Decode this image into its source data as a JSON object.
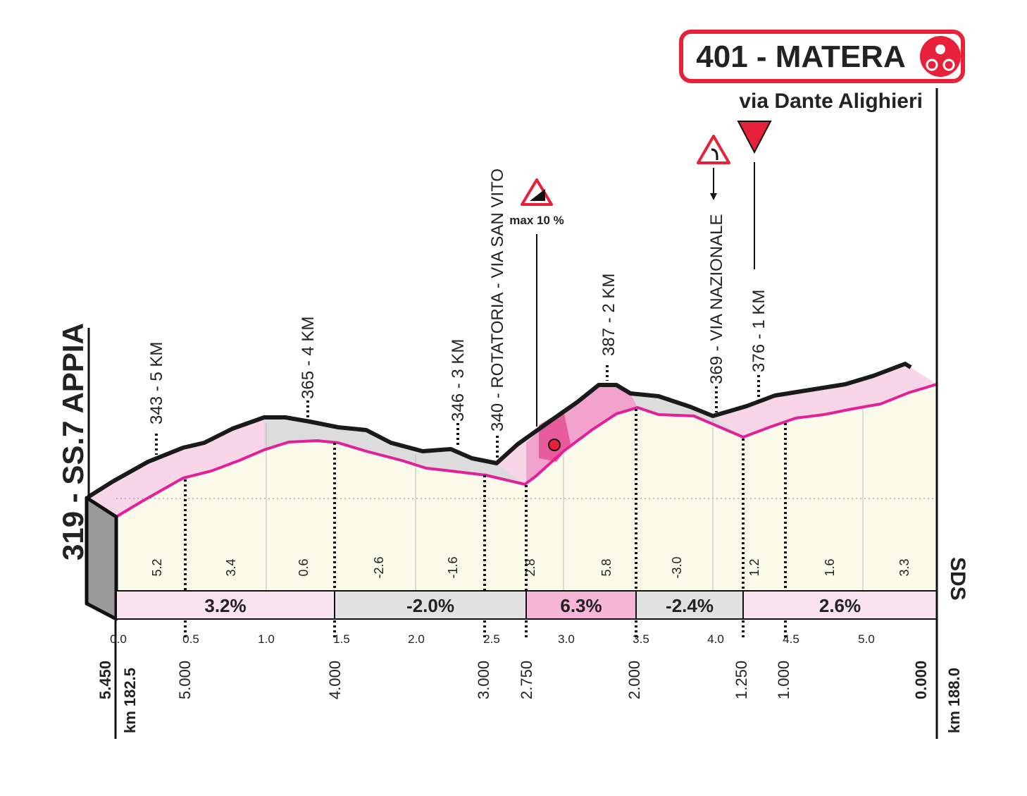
{
  "header": {
    "title": "401 - MATERA",
    "subtitle": "via Dante Alighieri"
  },
  "start_label": "319 - SS.7 APPIA",
  "climb_sign": "max 10 %",
  "points": [
    "343 - 5 KM",
    "365 - 4 KM",
    "346 - 3 KM",
    "340 - ROTATORIA - VIA SAN VITO",
    "387 - 2 KM",
    "369 - VIA NAZIONALE",
    "376 - 1 KM"
  ],
  "gradients": [
    "5.2",
    "3.4",
    "0.6",
    "-2.6",
    "-1.6",
    "2.8",
    "5.8",
    "-3.0",
    "1.2",
    "1.6",
    "3.3"
  ],
  "sections": [
    "3.2%",
    "-2.0%",
    "6.3%",
    "-2.4%",
    "2.6%"
  ],
  "km_ticks": [
    "0.0",
    "0.5",
    "1.0",
    "1.5",
    "2.0",
    "2.5",
    "3.0",
    "3.5",
    "4.0",
    "4.5",
    "5.0"
  ],
  "remaining": [
    "5.450",
    "5.000",
    "4.000",
    "3.000",
    "2.750",
    "2.000",
    "1.250",
    "1.000",
    "0.000"
  ],
  "km_start": "km 182.5",
  "km_end": "km 188.0",
  "logo": "SDS"
}
